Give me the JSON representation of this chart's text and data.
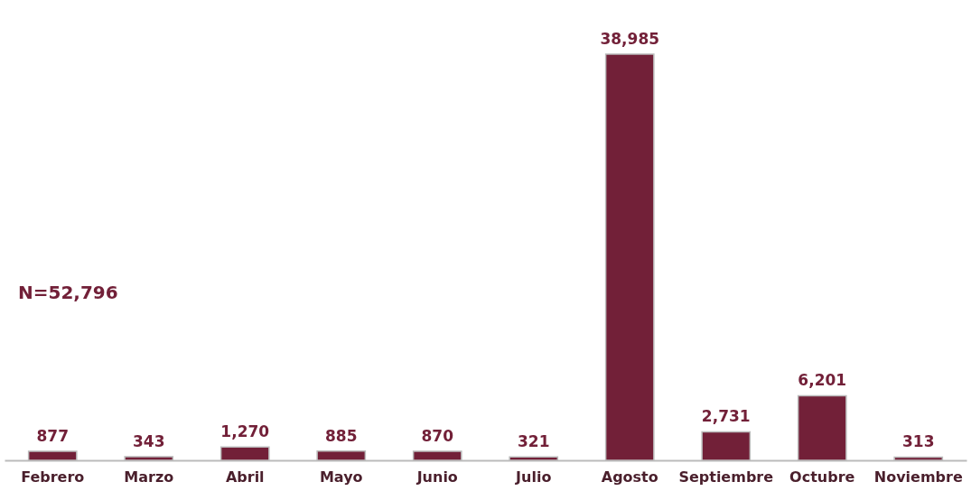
{
  "chart_data": {
    "type": "bar",
    "categories": [
      "Febrero",
      "Marzo",
      "Abril",
      "Mayo",
      "Junio",
      "Julio",
      "Agosto",
      "Septiembre",
      "Octubre",
      "Noviembre"
    ],
    "values": [
      877,
      343,
      1270,
      885,
      870,
      321,
      38985,
      2731,
      6201,
      313
    ],
    "value_labels": [
      "877",
      "343",
      "1,270",
      "885",
      "870",
      "321",
      "38,985",
      "2,731",
      "6,201",
      "313"
    ],
    "color": "#722038",
    "annotations": [
      "N=52,796"
    ],
    "grid": false
  }
}
